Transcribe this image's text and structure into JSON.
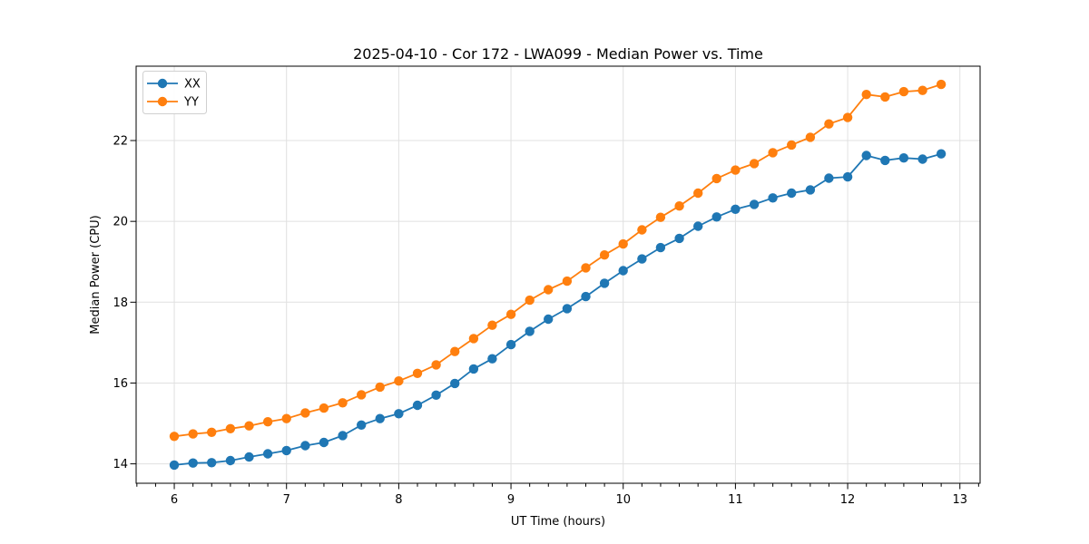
{
  "chart_data": {
    "type": "line",
    "title": "2025-04-10 - Cor 172 - LWA099 - Median Power vs. Time",
    "xlabel": "UT Time (hours)",
    "ylabel": "Median Power (CPU)",
    "grid": true,
    "legend_position": "upper left",
    "marker": "o",
    "xlim": [
      5.66,
      13.18
    ],
    "ylim": [
      13.52,
      23.84
    ],
    "xticks": [
      6,
      7,
      8,
      9,
      10,
      11,
      12,
      13
    ],
    "yticks": [
      14,
      16,
      18,
      20,
      22
    ],
    "x_minor_tick_step": 0.1666667,
    "x": [
      6.0,
      6.167,
      6.333,
      6.5,
      6.667,
      6.833,
      7.0,
      7.167,
      7.333,
      7.5,
      7.667,
      7.833,
      8.0,
      8.167,
      8.333,
      8.5,
      8.667,
      8.833,
      9.0,
      9.167,
      9.333,
      9.5,
      9.667,
      9.833,
      10.0,
      10.167,
      10.333,
      10.5,
      10.667,
      10.833,
      11.0,
      11.167,
      11.333,
      11.5,
      11.667,
      11.833,
      12.0,
      12.167,
      12.333,
      12.5,
      12.667,
      12.833
    ],
    "series": [
      {
        "name": "XX",
        "color": "#1f77b4",
        "values": [
          13.97,
          14.02,
          14.03,
          14.08,
          14.17,
          14.25,
          14.33,
          14.45,
          14.53,
          14.7,
          14.96,
          15.12,
          15.24,
          15.45,
          15.7,
          15.99,
          16.35,
          16.6,
          16.95,
          17.28,
          17.58,
          17.84,
          18.14,
          18.47,
          18.78,
          19.07,
          19.35,
          19.58,
          19.88,
          20.11,
          20.3,
          20.42,
          20.58,
          20.7,
          20.78,
          21.07,
          21.1,
          21.63,
          21.51,
          21.57,
          21.54,
          21.67
        ]
      },
      {
        "name": "YY",
        "color": "#ff7f0e",
        "values": [
          14.68,
          14.74,
          14.78,
          14.87,
          14.94,
          15.04,
          15.12,
          15.26,
          15.38,
          15.51,
          15.71,
          15.9,
          16.05,
          16.24,
          16.45,
          16.78,
          17.1,
          17.43,
          17.7,
          18.05,
          18.31,
          18.52,
          18.85,
          19.17,
          19.44,
          19.79,
          20.1,
          20.38,
          20.7,
          21.06,
          21.27,
          21.43,
          21.7,
          21.89,
          22.08,
          22.41,
          22.57,
          23.14,
          23.08,
          23.21,
          23.24,
          23.39
        ]
      }
    ]
  }
}
